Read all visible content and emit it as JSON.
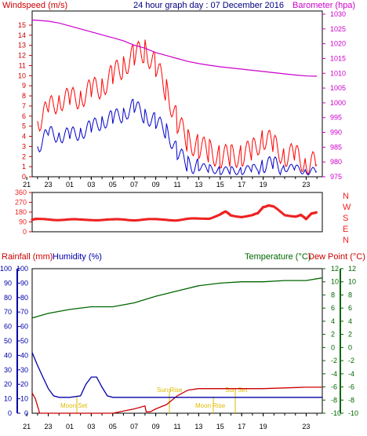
{
  "colors": {
    "windspeed": "#cc0000",
    "windgust": "#ff0000",
    "wind_avg": "#0000cc",
    "barometer": "#cc00cc",
    "title": "#000080",
    "direction": "#ee2222",
    "rainfall": "#cc0000",
    "humidity": "#0000aa",
    "temperature": "#006600",
    "dewpoint": "#cc0000",
    "moon": "#ddbb00",
    "sun": "#ddbb00",
    "grid": "#bbbbbb"
  },
  "header": {
    "windspeed_label": "Windspeed (m/s)",
    "title": "24 hour graph day : 07 December 2016",
    "barometer_label": "Barometer (hpa)"
  },
  "footer_labels": {
    "rainfall": "Rainfall (mm)",
    "humidity": "Humidity (%)",
    "temperature": "Temperature (°C)",
    "dewpoint": "Dew Point (°C)"
  },
  "x_ticks": [
    "23",
    "01",
    "03",
    "05",
    "07",
    "09",
    "11",
    "13",
    "15",
    "17",
    "19",
    "21",
    "23"
  ],
  "compass": [
    "N",
    "W",
    "S",
    "E",
    "N"
  ],
  "astro": {
    "moon_set": "Moon Set",
    "sun_rise": "Sun Rise",
    "moon_rise": "Moon Rise",
    "sun_set": "Sun Set"
  },
  "chart_data": [
    {
      "type": "line",
      "title": "24 hour graph day : 07 December 2016",
      "x_range_hours": [
        21.5,
        24.5
      ],
      "ylabel": "Windspeed (m/s)",
      "ylim": [
        0,
        15
      ],
      "y_ticks": [
        0,
        1,
        2,
        3,
        4,
        5,
        6,
        7,
        8,
        9,
        10,
        11,
        12,
        13,
        14,
        15
      ],
      "y2label": "Barometer (hpa)",
      "y2lim": [
        975,
        1030
      ],
      "y2_ticks": [
        975,
        980,
        985,
        990,
        995,
        1000,
        1005,
        1010,
        1015,
        1020,
        1025,
        1030
      ],
      "grid": false,
      "series": [
        {
          "name": "Wind gust (m/s)",
          "x": [
            22,
            23,
            0,
            1,
            2,
            3,
            4,
            5,
            6,
            7,
            8,
            9,
            10,
            11,
            12,
            13,
            14,
            15,
            16,
            17,
            18,
            19,
            20,
            21,
            22,
            23,
            24
          ],
          "values": [
            5.5,
            6.5,
            7.8,
            7.5,
            8,
            8.5,
            9,
            10,
            11,
            12,
            12.5,
            11,
            8.5,
            5.5,
            3.5,
            3,
            2.5,
            2,
            2,
            2.2,
            2.5,
            4,
            3,
            2.2,
            2,
            1.5,
            1.2
          ]
        },
        {
          "name": "Windspeed (m/s)",
          "x": [
            22,
            23,
            0,
            1,
            2,
            3,
            4,
            5,
            6,
            7,
            8,
            9,
            10,
            11,
            12,
            13,
            14,
            15,
            16,
            17,
            18,
            19,
            20,
            21,
            22,
            23,
            24
          ],
          "values": [
            3,
            4.2,
            4.2,
            4,
            4.5,
            4.8,
            5.5,
            5.8,
            6.2,
            7,
            6,
            5.5,
            4.5,
            2.5,
            1.2,
            1,
            0.8,
            0.6,
            0.6,
            0.6,
            0.8,
            1.2,
            1.2,
            0.9,
            0.8,
            0.6,
            0.5
          ]
        },
        {
          "name": "Barometer (hpa)",
          "axis": "right",
          "x": [
            21.5,
            22,
            23,
            0,
            1,
            2,
            3,
            4,
            5,
            6,
            7,
            8,
            9,
            10,
            11,
            12,
            13,
            14,
            15,
            16,
            17,
            18,
            19,
            20,
            21,
            22,
            23,
            24
          ],
          "values": [
            1028,
            1027.9,
            1027.6,
            1027,
            1026,
            1025,
            1024,
            1023,
            1022,
            1021,
            1019.5,
            1018.5,
            1017,
            1016,
            1015,
            1014,
            1013.3,
            1012.7,
            1012.2,
            1011.8,
            1011.4,
            1011,
            1010.6,
            1010.2,
            1009.8,
            1009.4,
            1009.1,
            1009
          ]
        }
      ]
    },
    {
      "type": "scatter",
      "ylim": [
        0,
        360
      ],
      "y_ticks": [
        0,
        90,
        180,
        270,
        360
      ],
      "series": [
        {
          "name": "Wind direction",
          "x": [
            21.5,
            22,
            23,
            0,
            1,
            2,
            3,
            4,
            5,
            6,
            7,
            8,
            9,
            10,
            11,
            12,
            13,
            14,
            15,
            15.5,
            16,
            17,
            18,
            18.5,
            19,
            19.5,
            20,
            21,
            22,
            22.5,
            23,
            23.5,
            24
          ],
          "values": [
            110,
            112,
            115,
            112,
            110,
            108,
            112,
            110,
            108,
            112,
            110,
            112,
            110,
            112,
            108,
            115,
            118,
            125,
            160,
            180,
            150,
            140,
            150,
            165,
            230,
            245,
            225,
            150,
            145,
            155,
            110,
            170,
            185
          ]
        }
      ]
    },
    {
      "type": "line",
      "ylabel": "Rainfall (mm) / Humidity (%)",
      "ylim": [
        0,
        100
      ],
      "y_ticks": [
        0,
        10,
        20,
        30,
        40,
        50,
        60,
        70,
        80,
        90,
        100
      ],
      "y2label": "Temperature (°C) / Dew Point (°C)",
      "y2lim": [
        -10,
        12
      ],
      "y2_ticks": [
        -10,
        -8,
        -6,
        -4,
        -2,
        0,
        2,
        4,
        6,
        8,
        10,
        12
      ],
      "series": [
        {
          "name": "Rainfall (mm)",
          "x": [
            21.5,
            21.8,
            22.2,
            22.5,
            23,
            1,
            3,
            5,
            7,
            8,
            8.1,
            8.5,
            9,
            10,
            11,
            12,
            13,
            15,
            17,
            19,
            21,
            23,
            24.5
          ],
          "values": [
            14,
            10,
            0,
            0,
            0,
            0,
            0,
            0,
            3,
            5,
            1,
            1,
            3,
            6,
            12,
            16,
            17,
            17,
            17,
            17,
            17.5,
            18,
            18
          ]
        },
        {
          "name": "Humidity (%)",
          "x": [
            21.5,
            22,
            22.5,
            23,
            23.5,
            0,
            1,
            2,
            2.5,
            3,
            3.5,
            4,
            4.5,
            5,
            7,
            9,
            11,
            13,
            15,
            17,
            19,
            21,
            23,
            24.5
          ],
          "values": [
            42,
            33,
            25,
            17,
            12,
            11,
            11,
            12,
            20,
            25,
            25,
            18,
            12,
            11,
            11,
            11,
            11,
            11,
            11,
            11,
            11,
            11,
            11,
            11
          ]
        },
        {
          "name": "Temperature (°C)",
          "axis": "right",
          "x": [
            21.5,
            23,
            1,
            3,
            5,
            7,
            9,
            11,
            13,
            15,
            17,
            19,
            21,
            23,
            24.5
          ],
          "values": [
            4.5,
            5.2,
            5.8,
            6.2,
            6.2,
            6.8,
            7.8,
            8.6,
            9.4,
            9.8,
            10,
            10,
            10.2,
            10.2,
            10.6
          ]
        }
      ]
    }
  ]
}
